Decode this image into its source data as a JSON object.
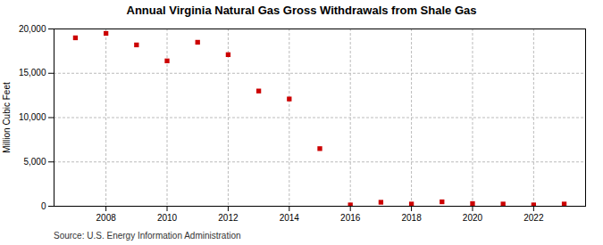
{
  "chart_data": {
    "type": "scatter",
    "title": "Annual Virginia Natural Gas Gross Withdrawals from Shale Gas",
    "ylabel": "Million Cubic Feet",
    "annotation": "Source: U.S. Energy Information Administration",
    "x": [
      2007,
      2008,
      2009,
      2010,
      2011,
      2012,
      2013,
      2014,
      2015,
      2016,
      2017,
      2018,
      2019,
      2020,
      2021,
      2022,
      2023
    ],
    "values": [
      19000,
      19500,
      18200,
      16400,
      18500,
      17100,
      13000,
      12100,
      6500,
      150,
      450,
      250,
      500,
      300,
      250,
      150,
      250
    ],
    "color": "#cc0000",
    "marker": "square",
    "grid": true,
    "xlim": [
      2006.3,
      2023.7
    ],
    "xticks": [
      2008,
      2010,
      2012,
      2014,
      2016,
      2018,
      2020,
      2022
    ],
    "ylim": [
      0,
      20000
    ],
    "yticks": [
      0,
      {
        "value": 5000,
        "label": "5,000"
      },
      {
        "value": 10000,
        "label": "10,000"
      },
      {
        "value": 15000,
        "label": "15,000"
      },
      {
        "value": 20000,
        "label": "20,000"
      }
    ]
  }
}
